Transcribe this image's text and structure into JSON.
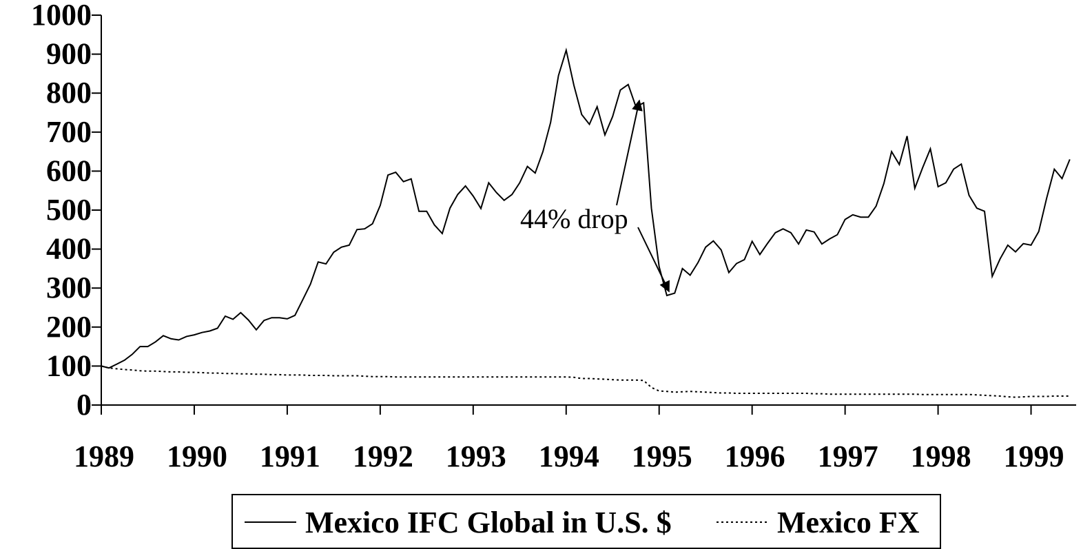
{
  "chart_data": {
    "type": "line",
    "annotation": "44% drop",
    "x": [
      1989,
      1989.083,
      1989.167,
      1989.25,
      1989.333,
      1989.417,
      1989.5,
      1989.583,
      1989.667,
      1989.75,
      1989.833,
      1989.917,
      1990,
      1990.083,
      1990.167,
      1990.25,
      1990.333,
      1990.417,
      1990.5,
      1990.583,
      1990.667,
      1990.75,
      1990.833,
      1990.917,
      1991,
      1991.083,
      1991.167,
      1991.25,
      1991.333,
      1991.417,
      1991.5,
      1991.583,
      1991.667,
      1991.75,
      1991.833,
      1991.917,
      1992,
      1992.083,
      1992.167,
      1992.25,
      1992.333,
      1992.417,
      1992.5,
      1992.583,
      1992.667,
      1992.75,
      1992.833,
      1992.917,
      1993,
      1993.083,
      1993.167,
      1993.25,
      1993.333,
      1993.417,
      1993.5,
      1993.583,
      1993.667,
      1993.75,
      1993.833,
      1993.917,
      1994,
      1994.083,
      1994.167,
      1994.25,
      1994.333,
      1994.417,
      1994.5,
      1994.583,
      1994.667,
      1994.75,
      1994.833,
      1994.917,
      1995,
      1995.083,
      1995.167,
      1995.25,
      1995.333,
      1995.417,
      1995.5,
      1995.583,
      1995.667,
      1995.75,
      1995.833,
      1995.917,
      1996,
      1996.083,
      1996.167,
      1996.25,
      1996.333,
      1996.417,
      1996.5,
      1996.583,
      1996.667,
      1996.75,
      1996.833,
      1996.917,
      1997,
      1997.083,
      1997.167,
      1997.25,
      1997.333,
      1997.417,
      1997.5,
      1997.583,
      1997.667,
      1997.75,
      1997.833,
      1997.917,
      1998,
      1998.083,
      1998.167,
      1998.25,
      1998.333,
      1998.417,
      1998.5,
      1998.583,
      1998.667,
      1998.75,
      1998.833,
      1998.917,
      1999,
      1999.083,
      1999.167,
      1999.25,
      1999.333,
      1999.417
    ],
    "series": [
      {
        "name": "Mexico IFC Global in U.S. $",
        "color": "#000000",
        "line_style": "solid",
        "values": [
          100,
          95,
          105,
          115,
          130,
          150,
          150,
          162,
          178,
          170,
          167,
          176,
          180,
          186,
          190,
          197,
          228,
          220,
          237,
          218,
          193,
          217,
          224,
          224,
          221,
          230,
          270,
          310,
          367,
          362,
          392,
          405,
          410,
          450,
          452,
          465,
          512,
          590,
          597,
          573,
          580,
          497,
          497,
          462,
          440,
          505,
          540,
          562,
          536,
          504,
          570,
          545,
          525,
          540,
          570,
          612,
          595,
          650,
          725,
          845,
          910,
          820,
          745,
          720,
          765,
          693,
          740,
          808,
          822,
          765,
          775,
          505,
          355,
          281,
          287,
          350,
          333,
          365,
          405,
          421,
          398,
          340,
          363,
          373,
          420,
          386,
          415,
          442,
          452,
          442,
          413,
          449,
          444,
          413,
          426,
          437,
          476,
          488,
          482,
          482,
          510,
          568,
          650,
          617,
          690,
          556,
          608,
          657,
          560,
          570,
          605,
          618,
          538,
          505,
          497,
          330,
          375,
          410,
          393,
          414,
          410,
          445,
          530,
          605,
          581,
          630
        ]
      },
      {
        "name": "Mexico FX",
        "color": "#000000",
        "line_style": "dotted",
        "values": [
          100,
          95,
          93,
          91,
          90,
          88,
          87,
          87,
          86,
          85,
          85,
          84,
          84,
          83,
          82,
          82,
          81,
          81,
          80,
          80,
          79,
          79,
          78,
          78,
          77,
          77,
          77,
          76,
          76,
          76,
          75,
          75,
          75,
          75,
          74,
          73,
          73,
          73,
          72,
          72,
          72,
          72,
          72,
          72,
          72,
          72,
          72,
          72,
          72,
          72,
          72,
          72,
          72,
          72,
          72,
          72,
          72,
          72,
          72,
          72,
          72,
          71,
          68,
          68,
          67,
          66,
          65,
          64,
          64,
          64,
          63,
          45,
          36,
          35,
          33,
          34,
          35,
          34,
          33,
          32,
          31,
          31,
          30,
          30,
          30,
          30,
          30,
          30,
          30,
          30,
          30,
          30,
          29,
          29,
          28,
          28,
          28,
          28,
          28,
          28,
          28,
          28,
          28,
          28,
          28,
          28,
          27,
          27,
          27,
          27,
          27,
          27,
          27,
          26,
          25,
          24,
          23,
          21,
          20,
          21,
          22,
          22,
          22,
          23,
          23,
          23
        ]
      }
    ],
    "xlim": [
      1989,
      1999.5
    ],
    "xticks": [
      1989,
      1990,
      1991,
      1992,
      1993,
      1994,
      1995,
      1996,
      1997,
      1998,
      1999
    ],
    "ylim": [
      0,
      1000
    ],
    "yticks": [
      0,
      100,
      200,
      300,
      400,
      500,
      600,
      700,
      800,
      900,
      1000
    ],
    "grid": false,
    "legend": "bottom"
  }
}
